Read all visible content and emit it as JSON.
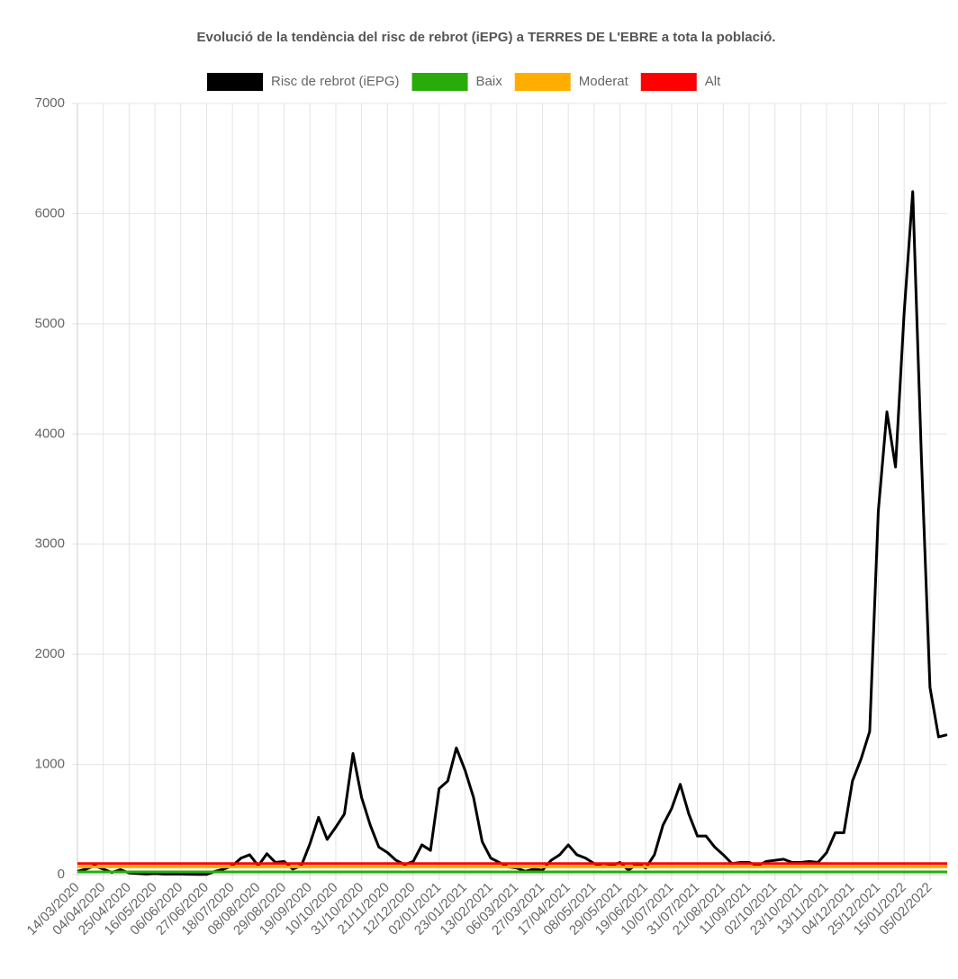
{
  "chart_data": {
    "type": "line",
    "title": "Evolució de la tendència del risc de rebrot (iEPG) a TERRES DE L'EBRE a tota la població.",
    "categories": [
      "14/03/2020",
      null,
      null,
      "04/04/2020",
      null,
      null,
      "25/04/2020",
      null,
      null,
      "16/05/2020",
      null,
      null,
      "06/06/2020",
      null,
      null,
      "27/06/2020",
      null,
      null,
      "18/07/2020",
      null,
      null,
      "08/08/2020",
      null,
      null,
      "29/08/2020",
      null,
      null,
      "19/09/2020",
      null,
      null,
      "10/10/2020",
      null,
      null,
      "31/10/2020",
      null,
      null,
      "21/11/2020",
      null,
      null,
      "12/12/2020",
      null,
      null,
      "02/01/2021",
      null,
      null,
      "23/01/2021",
      null,
      null,
      "13/02/2021",
      null,
      null,
      "06/03/2021",
      null,
      null,
      "27/03/2021",
      null,
      null,
      "17/04/2021",
      null,
      null,
      "08/05/2021",
      null,
      null,
      "29/05/2021",
      null,
      null,
      "19/06/2021",
      null,
      null,
      "10/07/2021",
      null,
      null,
      "31/07/2021",
      null,
      null,
      "21/08/2021",
      null,
      null,
      "11/09/2021",
      null,
      null,
      "02/10/2021",
      null,
      null,
      "23/10/2021",
      null,
      null,
      "13/11/2021",
      null,
      null,
      "04/12/2021",
      null,
      null,
      "25/12/2021",
      null,
      null,
      "15/01/2022",
      null,
      null,
      "05/02/2022",
      null,
      null
    ],
    "series": [
      {
        "name": "Risc de rebrot (iEPG)",
        "color": "#000000",
        "values": [
          30,
          50,
          80,
          50,
          20,
          45,
          15,
          10,
          5,
          10,
          5,
          5,
          5,
          3,
          2,
          2,
          30,
          50,
          80,
          150,
          180,
          80,
          190,
          110,
          120,
          50,
          80,
          280,
          520,
          320,
          430,
          550,
          1100,
          700,
          450,
          250,
          200,
          130,
          90,
          120,
          270,
          220,
          780,
          850,
          1150,
          950,
          700,
          300,
          150,
          110,
          70,
          60,
          30,
          50,
          40,
          130,
          180,
          270,
          180,
          150,
          100,
          70,
          80,
          110,
          40,
          100,
          60,
          180,
          450,
          600,
          820,
          550,
          350,
          350,
          250,
          180,
          100,
          110,
          110,
          80,
          120,
          130,
          140,
          110,
          110,
          120,
          110,
          200,
          380,
          380,
          850,
          1050,
          1300,
          3300,
          4200,
          3700,
          5100,
          6200,
          3800,
          1700,
          1250,
          1270
        ]
      },
      {
        "name": "Baix",
        "color": "#2aab0c",
        "values": [
          25,
          25,
          25,
          25,
          25,
          25,
          25,
          25,
          25,
          25,
          25,
          25,
          25,
          25,
          25,
          25,
          25,
          25,
          25,
          25,
          25,
          25,
          25,
          25,
          25,
          25,
          25,
          25,
          25,
          25,
          25,
          25,
          25,
          25,
          25,
          25,
          25,
          25,
          25,
          25,
          25,
          25,
          25,
          25,
          25,
          25,
          25,
          25,
          25,
          25,
          25,
          25,
          25,
          25,
          25,
          25,
          25,
          25,
          25,
          25,
          25,
          25,
          25,
          25,
          25,
          25,
          25,
          25,
          25,
          25,
          25,
          25,
          25,
          25,
          25,
          25,
          25,
          25,
          25,
          25,
          25,
          25,
          25,
          25,
          25,
          25,
          25,
          25,
          25,
          25,
          25,
          25,
          25,
          25,
          25,
          25,
          25,
          25,
          25,
          25,
          25,
          25
        ]
      },
      {
        "name": "Moderat",
        "color": "#ffae00",
        "values": [
          70,
          70,
          70,
          70,
          70,
          70,
          70,
          70,
          70,
          70,
          70,
          70,
          70,
          70,
          70,
          70,
          70,
          70,
          70,
          70,
          70,
          70,
          70,
          70,
          70,
          70,
          70,
          70,
          70,
          70,
          70,
          70,
          70,
          70,
          70,
          70,
          70,
          70,
          70,
          70,
          70,
          70,
          70,
          70,
          70,
          70,
          70,
          70,
          70,
          70,
          70,
          70,
          70,
          70,
          70,
          70,
          70,
          70,
          70,
          70,
          70,
          70,
          70,
          70,
          70,
          70,
          70,
          70,
          70,
          70,
          70,
          70,
          70,
          70,
          70,
          70,
          70,
          70,
          70,
          70,
          70,
          70,
          70,
          70,
          70,
          70,
          70,
          70,
          70,
          70,
          70,
          70,
          70,
          70,
          70,
          70,
          70,
          70,
          70,
          70,
          70,
          70
        ]
      },
      {
        "name": "Alt",
        "color": "#ff0000",
        "values": [
          100,
          100,
          100,
          100,
          100,
          100,
          100,
          100,
          100,
          100,
          100,
          100,
          100,
          100,
          100,
          100,
          100,
          100,
          100,
          100,
          100,
          100,
          100,
          100,
          100,
          100,
          100,
          100,
          100,
          100,
          100,
          100,
          100,
          100,
          100,
          100,
          100,
          100,
          100,
          100,
          100,
          100,
          100,
          100,
          100,
          100,
          100,
          100,
          100,
          100,
          100,
          100,
          100,
          100,
          100,
          100,
          100,
          100,
          100,
          100,
          100,
          100,
          100,
          100,
          100,
          100,
          100,
          100,
          100,
          100,
          100,
          100,
          100,
          100,
          100,
          100,
          100,
          100,
          100,
          100,
          100,
          100,
          100,
          100,
          100,
          100,
          100,
          100,
          100,
          100,
          100,
          100,
          100,
          100,
          100,
          100,
          100,
          100,
          100,
          100,
          100,
          100
        ]
      }
    ],
    "ylim": [
      0,
      7000
    ],
    "yticks": [
      0,
      1000,
      2000,
      3000,
      4000,
      5000,
      6000,
      7000
    ],
    "grid": true
  }
}
